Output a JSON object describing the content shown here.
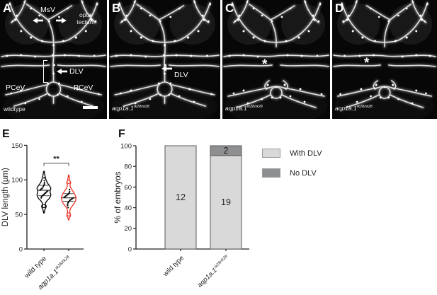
{
  "figure": {
    "panels": [
      {
        "letter": "A",
        "caption": "wildtype",
        "labels": {
          "msv": "MsV",
          "optic_line1": "optic",
          "optic_line2": "tectum",
          "dlv": "DLV",
          "pcev_left": "PCeV",
          "pcev_right": "PCeV"
        }
      },
      {
        "letter": "B",
        "gene": "aqp1a.1",
        "allele": "rk28/rk28",
        "labels": {
          "dlv": "DLV"
        }
      },
      {
        "letter": "C",
        "gene": "aqp1a.1",
        "allele": "rk28/rk28",
        "asterisk": "*"
      },
      {
        "letter": "D",
        "gene": "aqp1a.1",
        "allele": "rk28/rk28",
        "asterisk": "*"
      }
    ]
  },
  "chart_data": [
    {
      "panel_letter": "E",
      "type": "violin",
      "title": "",
      "ylabel": "DLV length (µm)",
      "ylim": [
        0,
        150
      ],
      "yticks": [
        0,
        50,
        100,
        150
      ],
      "significance": "**",
      "sig_level_value": 124,
      "groups": [
        {
          "label": {
            "text": "wild type"
          },
          "color": "#000000",
          "stats": {
            "min": 52,
            "q1": 77,
            "median": 85,
            "q3": 92,
            "max": 112
          },
          "outline": [
            [
              52,
              0.4
            ],
            [
              56,
              1.1
            ],
            [
              59,
              2.3
            ],
            [
              62,
              3.4
            ],
            [
              64,
              2.0
            ],
            [
              67,
              2.4
            ],
            [
              70,
              4.5
            ],
            [
              73,
              7.5
            ],
            [
              76,
              9.2
            ],
            [
              79,
              9.8
            ],
            [
              82,
              8.6
            ],
            [
              85,
              9.0
            ],
            [
              88,
              9.8
            ],
            [
              91,
              8.2
            ],
            [
              94,
              6.0
            ],
            [
              97,
              4.2
            ],
            [
              100,
              3.0
            ],
            [
              103,
              2.2
            ],
            [
              107,
              1.3
            ],
            [
              112,
              0.4
            ]
          ],
          "points": [
            62,
            74,
            76,
            77,
            78,
            79,
            80,
            81,
            82,
            83,
            84,
            85,
            86,
            87,
            88,
            90,
            92,
            94,
            96,
            99,
            103,
            112
          ],
          "open_points": [
            62
          ]
        },
        {
          "label": {
            "gene": "aqp1a.1",
            "sup": "rk28/rk28"
          },
          "color": "#ee3124",
          "stats": {
            "min": 42,
            "q1": 69,
            "median": 74,
            "q3": 80,
            "max": 107
          },
          "outline": [
            [
              42,
              0.4
            ],
            [
              45,
              1.0
            ],
            [
              48,
              2.6
            ],
            [
              51,
              2.2
            ],
            [
              54,
              1.4
            ],
            [
              58,
              2.2
            ],
            [
              62,
              4.8
            ],
            [
              66,
              7.8
            ],
            [
              70,
              9.8
            ],
            [
              74,
              10.4
            ],
            [
              78,
              9.2
            ],
            [
              82,
              7.0
            ],
            [
              86,
              4.4
            ],
            [
              90,
              2.2
            ],
            [
              93,
              1.8
            ],
            [
              96,
              2.8
            ],
            [
              99,
              1.6
            ],
            [
              103,
              0.9
            ],
            [
              107,
              0.4
            ]
          ],
          "points": [
            50,
            60,
            63,
            65,
            67,
            68,
            70,
            71,
            72,
            73,
            74,
            75,
            76,
            77,
            78,
            79,
            80,
            81,
            83,
            86,
            97
          ],
          "open_points": [
            97,
            50
          ]
        }
      ]
    },
    {
      "panel_letter": "F",
      "type": "stacked_bar",
      "title": "",
      "ylabel": "% of embryos",
      "ylim": [
        0,
        100
      ],
      "yticks": [
        0,
        20,
        40,
        60,
        80,
        100
      ],
      "categories": [
        {
          "text": "wild type"
        },
        {
          "gene": "aqp1a.1",
          "sup": "rk28/rk28"
        }
      ],
      "series": [
        {
          "name": "With DLV",
          "color": "#d9d9d9",
          "values": [
            100,
            90.5
          ],
          "counts": [
            "12",
            "19"
          ]
        },
        {
          "name": "No DLV",
          "color": "#8e8f91",
          "values": [
            0,
            9.5
          ],
          "counts": [
            "",
            "2"
          ]
        }
      ],
      "legend_position": "right"
    }
  ]
}
